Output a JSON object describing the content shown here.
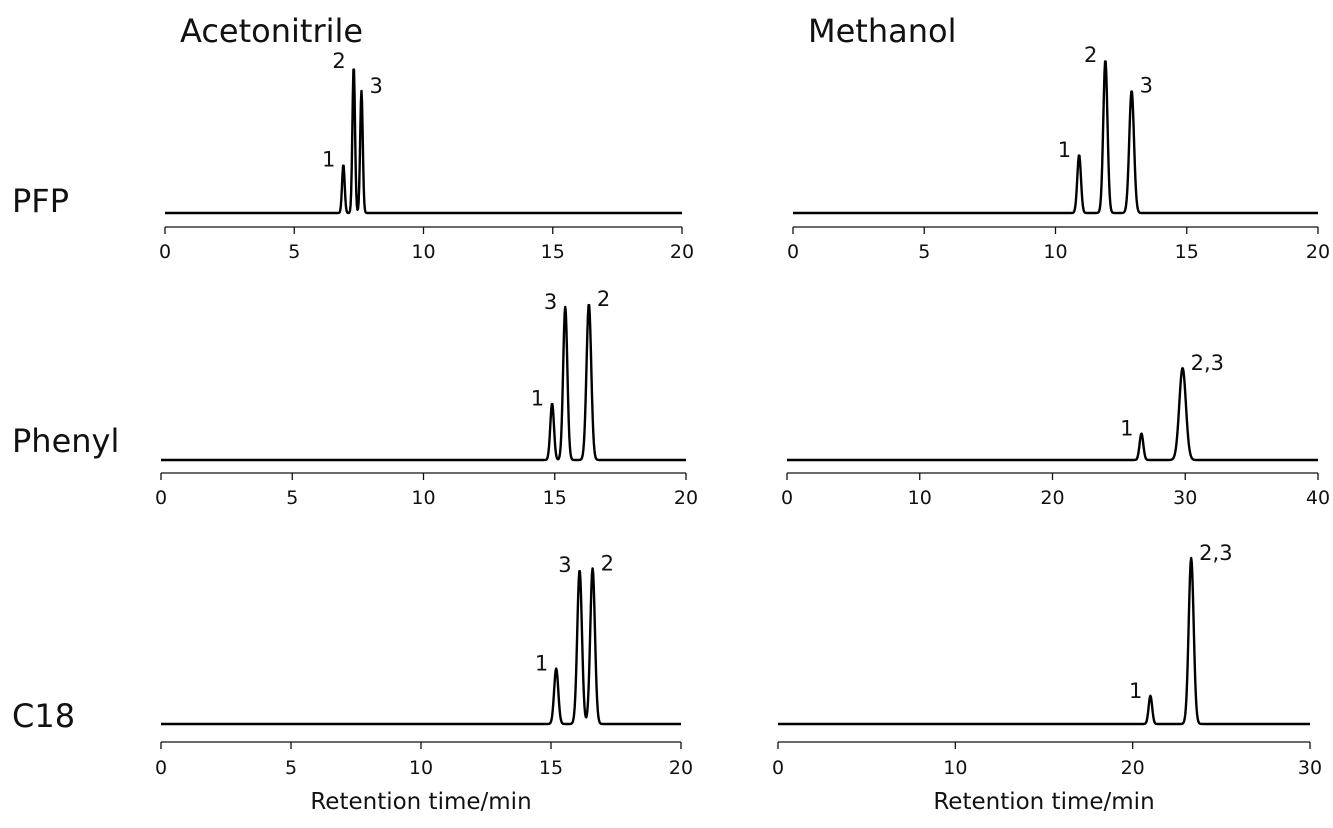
{
  "colors": {
    "acetonitrile": "#3b3b9e",
    "methanol": "#e8141e",
    "trace": "#000000"
  },
  "column_titles": {
    "acetonitrile": "Acetonitrile",
    "methanol": "Methanol"
  },
  "row_labels": {
    "pfp": "PFP",
    "phenyl": "Phenyl",
    "c18": "C18"
  },
  "xlabel": "Retention time/min",
  "chart_data": [
    {
      "type": "line",
      "row": "PFP",
      "solvent": "Acetonitrile",
      "xlim": [
        0,
        20
      ],
      "ticks": [
        0,
        5,
        10,
        15,
        20
      ],
      "xlabel": "",
      "peaks": [
        {
          "label": "1",
          "rt": 6.9,
          "height": 0.33,
          "width": 0.05
        },
        {
          "label": "2",
          "rt": 7.3,
          "height": 1.0,
          "width": 0.05
        },
        {
          "label": "3",
          "rt": 7.6,
          "height": 0.83,
          "width": 0.05
        }
      ]
    },
    {
      "type": "line",
      "row": "PFP",
      "solvent": "Methanol",
      "xlim": [
        0,
        20
      ],
      "ticks": [
        0,
        5,
        10,
        15,
        20
      ],
      "xlabel": "",
      "peaks": [
        {
          "label": "1",
          "rt": 10.9,
          "height": 0.38,
          "width": 0.07
        },
        {
          "label": "2",
          "rt": 11.9,
          "height": 1.0,
          "width": 0.08
        },
        {
          "label": "3",
          "rt": 12.9,
          "height": 0.8,
          "width": 0.09
        }
      ]
    },
    {
      "type": "line",
      "row": "Phenyl",
      "solvent": "Acetonitrile",
      "xlim": [
        0,
        20
      ],
      "ticks": [
        0,
        5,
        10,
        15,
        20
      ],
      "xlabel": "",
      "peaks": [
        {
          "label": "1",
          "rt": 14.9,
          "height": 0.37,
          "width": 0.07
        },
        {
          "label": "3",
          "rt": 15.4,
          "height": 1.0,
          "width": 0.08
        },
        {
          "label": "2",
          "rt": 16.3,
          "height": 1.02,
          "width": 0.09
        }
      ]
    },
    {
      "type": "line",
      "row": "Phenyl",
      "solvent": "Methanol",
      "xlim": [
        0,
        40
      ],
      "ticks": [
        0,
        10,
        20,
        30,
        40
      ],
      "xlabel": "",
      "peaks": [
        {
          "label": "1",
          "rt": 26.7,
          "height": 0.23,
          "width": 0.14
        },
        {
          "label": "2,3",
          "rt": 29.8,
          "height": 0.8,
          "width": 0.25
        }
      ]
    },
    {
      "type": "line",
      "row": "C18",
      "solvent": "Acetonitrile",
      "xlim": [
        0,
        20
      ],
      "ticks": [
        0,
        5,
        10,
        15,
        20
      ],
      "xlabel": "Retention time/min",
      "peaks": [
        {
          "label": "1",
          "rt": 15.2,
          "height": 0.36,
          "width": 0.08
        },
        {
          "label": "3",
          "rt": 16.1,
          "height": 1.0,
          "width": 0.09
        },
        {
          "label": "2",
          "rt": 16.6,
          "height": 1.01,
          "width": 0.09
        }
      ]
    },
    {
      "type": "line",
      "row": "C18",
      "solvent": "Methanol",
      "xlim": [
        0,
        30
      ],
      "ticks": [
        0,
        10,
        20,
        30
      ],
      "xlabel": "Retention time/min",
      "peaks": [
        {
          "label": "1",
          "rt": 21.0,
          "height": 0.17,
          "width": 0.1
        },
        {
          "label": "2,3",
          "rt": 23.3,
          "height": 1.0,
          "width": 0.14
        }
      ]
    }
  ]
}
